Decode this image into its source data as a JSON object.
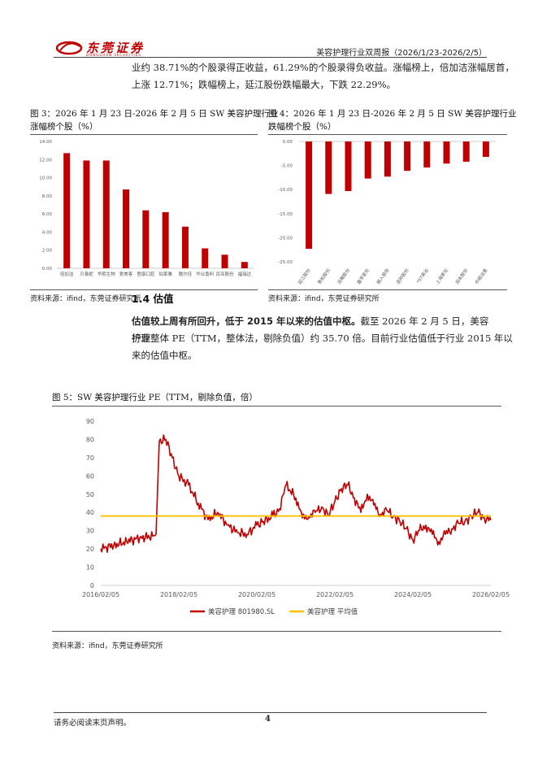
{
  "header": {
    "logo_text": "东莞证券",
    "logo_sub": "DONGGUAN SECURITIES",
    "title": "美容护理行业双周报（2026/1/23-2026/2/5）"
  },
  "intro": {
    "line1": "业约 38.71%的个股录得正收益，61.29%的个股录得负收益。涨幅榜上，倍加洁涨幅居首，",
    "line2": "上涨 12.71%；跌幅榜上，延江股份跌幅最大，下跌 22.29%。"
  },
  "figure3": {
    "caption1": "图 3：2026 年 1 月 23 日-2026 年 2 月 5 日 SW 美容护理行业",
    "caption2": "涨幅榜个股（%）",
    "source": "资料来源：ifind，东莞证券研究所"
  },
  "figure4": {
    "caption1": "图 4：2026 年 1 月 23 日-2026 年 2 月 5 日 SW 美容护理行业",
    "caption2": "跌幅榜个股（%）",
    "source": "资料来源：ifind，东莞证券研究所"
  },
  "section": {
    "title": "1.4 估值",
    "bold_lead": "估值较上周有所回升，低于 2015 年以来的估值中枢。",
    "rest_line1": "截至 2026 年 2 月 5 日，美容护理",
    "line2": "行业整体 PE（TTM，整体法，剔除负值）约 35.70 倍。目前行业估值低于行业 2015 年以",
    "line3": "来的估值中枢。"
  },
  "figure5": {
    "caption": "图 5：SW 美容护理行业 PE（TTM，剔除负值，倍）",
    "source": "资料来源：ifind，东莞证券研究所"
  },
  "footer": {
    "note": "请务必阅读末页声明。",
    "page": "4"
  },
  "colors": {
    "bar_red": "#c00000",
    "line_red": "#c00000",
    "avg_yellow": "#ffc000",
    "logo_red": "#c00000"
  },
  "chart_data": [
    {
      "type": "bar",
      "categories": [
        "倍加洁",
        "贝泰妮",
        "华熙生物",
        "爱美客",
        "登康口腔",
        "珀莱雅",
        "敷尔佳",
        "华业香料",
        "百亚股份",
        "福瑞达"
      ],
      "values": [
        12.71,
        11.9,
        11.9,
        8.7,
        6.4,
        6.2,
        4.6,
        2.2,
        1.5,
        0.7
      ],
      "ylim": [
        0,
        14
      ],
      "yticks": [
        "0.00",
        "2.00",
        "4.00",
        "6.00",
        "8.00",
        "10.00",
        "12.00",
        "14.00"
      ],
      "grid": false
    },
    {
      "type": "bar",
      "categories": [
        "延江股份",
        "青松股份",
        "洁雅股份",
        "嘉亨家化",
        "丽人丽妆",
        "诺邦股份",
        "*ST美谷",
        "上海家化",
        "润本股份",
        "中顺洁柔"
      ],
      "values": [
        -22.29,
        -10.9,
        -10.3,
        -7.7,
        -7.3,
        -6.1,
        -5.4,
        -4.6,
        -4.2,
        -3.2
      ],
      "ylim": [
        -25,
        0
      ],
      "yticks": [
        "0.00",
        "-5.00",
        "-10.00",
        "-15.00",
        "-20.00",
        "-25.00"
      ],
      "grid": false
    },
    {
      "type": "line",
      "x_ticks": [
        "2016/02/05",
        "2018/02/05",
        "2020/02/05",
        "2022/02/05",
        "2024/02/05",
        "2026/02/05"
      ],
      "ylim": [
        0,
        90
      ],
      "yticks": [
        "0",
        "10",
        "20",
        "30",
        "40",
        "50",
        "60",
        "70",
        "80",
        "90"
      ],
      "legend_position": "bottom",
      "series": [
        {
          "name": "美容护理 801980.SL",
          "x": [
            "2016/02",
            "2016/06",
            "2016/10",
            "2017/02",
            "2017/06",
            "2017/07",
            "2017/08",
            "2017/10",
            "2017/12",
            "2018/02",
            "2018/05",
            "2018/08",
            "2018/11",
            "2019/02",
            "2019/05",
            "2019/08",
            "2019/11",
            "2020/02",
            "2020/04",
            "2020/07",
            "2020/09",
            "2020/11",
            "2021/02",
            "2021/04",
            "2021/06",
            "2021/08",
            "2021/10",
            "2021/12",
            "2022/02",
            "2022/04",
            "2022/06",
            "2022/08",
            "2022/10",
            "2022/12",
            "2023/02",
            "2023/04",
            "2023/06",
            "2023/08",
            "2023/10",
            "2023/12",
            "2024/02",
            "2024/04",
            "2024/06",
            "2024/08",
            "2024/10",
            "2024/12",
            "2025/02",
            "2025/04",
            "2025/06",
            "2025/08",
            "2025/10",
            "2025/12",
            "2026/02"
          ],
          "values": [
            20,
            22,
            24,
            26,
            27,
            28,
            79,
            80,
            70,
            60,
            55,
            45,
            36,
            40,
            33,
            29,
            28,
            33,
            35,
            38,
            42,
            55,
            48,
            37,
            38,
            40,
            43,
            38,
            46,
            53,
            55,
            48,
            40,
            50,
            44,
            39,
            41,
            38,
            35,
            31,
            25,
            30,
            33,
            28,
            24,
            28,
            31,
            34,
            35,
            38,
            40,
            37,
            35.7
          ]
        },
        {
          "name": "美容护理 平均值",
          "values": [
            38,
            38
          ]
        }
      ]
    }
  ]
}
